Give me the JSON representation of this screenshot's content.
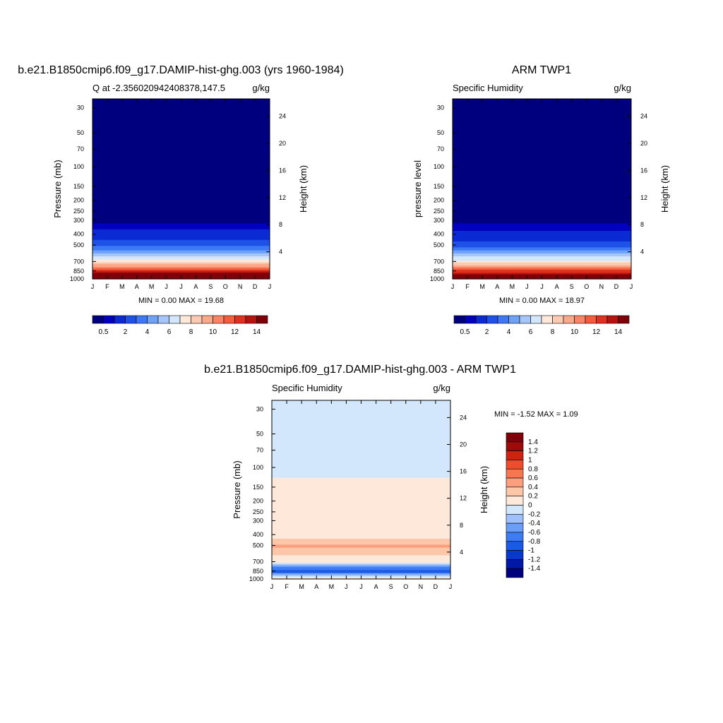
{
  "chart_data": [
    {
      "type": "heatmap",
      "title": "b.e21.B1850cmip6.f09_g17.DAMIP-hist-ghg.003 (yrs 1960-1984)",
      "subtitle_left": "Q at -2.356020942408378,147.5",
      "subtitle_right": "g/kg",
      "ylabel": "Pressure (mb)",
      "ylabel_right": "Height (km)",
      "x_ticks": [
        "J",
        "F",
        "M",
        "A",
        "M",
        "J",
        "J",
        "A",
        "S",
        "O",
        "N",
        "D",
        "J"
      ],
      "y_ticks": [
        "30",
        "50",
        "70",
        "100",
        "150",
        "200",
        "250",
        "300",
        "400",
        "500",
        "700",
        "850",
        "1000"
      ],
      "y_ticks_right": [
        "24",
        "20",
        "16",
        "12",
        "8",
        "4"
      ],
      "stats": "MIN =   0.00 MAX =  19.68",
      "colorbar_labels": [
        "0.5",
        "2",
        "4",
        "6",
        "8",
        "10",
        "12",
        "14"
      ],
      "levels": [
        0.5,
        1,
        2,
        3,
        4,
        5,
        6,
        7,
        8,
        9,
        10,
        11,
        12,
        13,
        14
      ],
      "pressure_levels": [
        30,
        50,
        70,
        100,
        150,
        200,
        250,
        300,
        400,
        500,
        700,
        850,
        1000
      ],
      "values_by_pressure": [
        0.0,
        0.0,
        0.0,
        0.0,
        0.0,
        0.0,
        0.1,
        0.3,
        1.3,
        2.6,
        7.5,
        12.5,
        17.5
      ]
    },
    {
      "type": "heatmap",
      "title": "ARM TWP1",
      "subtitle_left": "Specific Humidity",
      "subtitle_right": "g/kg",
      "ylabel": "pressure level",
      "ylabel_right": "Height (km)",
      "x_ticks": [
        "J",
        "F",
        "M",
        "A",
        "M",
        "J",
        "J",
        "A",
        "S",
        "O",
        "N",
        "D",
        "J"
      ],
      "y_ticks": [
        "30",
        "50",
        "70",
        "100",
        "150",
        "200",
        "250",
        "300",
        "400",
        "500",
        "700",
        "850",
        "1000"
      ],
      "y_ticks_right": [
        "24",
        "20",
        "16",
        "12",
        "8",
        "4"
      ],
      "stats": "MIN =   0.00 MAX =  18.97",
      "colorbar_labels": [
        "0.5",
        "2",
        "4",
        "6",
        "8",
        "10",
        "12",
        "14"
      ],
      "levels": [
        0.5,
        1,
        2,
        3,
        4,
        5,
        6,
        7,
        8,
        9,
        10,
        11,
        12,
        13,
        14
      ],
      "pressure_levels": [
        30,
        50,
        70,
        100,
        150,
        200,
        250,
        300,
        400,
        500,
        700,
        850,
        1000
      ],
      "values_by_pressure": [
        0.0,
        0.0,
        0.0,
        0.0,
        0.0,
        0.0,
        0.1,
        0.3,
        1.2,
        2.5,
        7.3,
        12.2,
        17.0
      ]
    },
    {
      "type": "heatmap",
      "title": "b.e21.B1850cmip6.f09_g17.DAMIP-hist-ghg.003 - ARM TWP1",
      "subtitle_left": "Specific Humidity",
      "subtitle_right": "g/kg",
      "ylabel": "Pressure (mb)",
      "ylabel_right": "Height (km)",
      "x_ticks": [
        "J",
        "F",
        "M",
        "A",
        "M",
        "J",
        "J",
        "A",
        "S",
        "O",
        "N",
        "D",
        "J"
      ],
      "y_ticks": [
        "30",
        "50",
        "70",
        "100",
        "150",
        "200",
        "250",
        "300",
        "400",
        "500",
        "700",
        "850",
        "1000"
      ],
      "y_ticks_right": [
        "24",
        "20",
        "16",
        "12",
        "8",
        "4"
      ],
      "stats": "MIN =  -1.52 MAX =   1.09",
      "colorbar_labels": [
        "1.4",
        "1.2",
        "1",
        "0.8",
        "0.6",
        "0.4",
        "0.2",
        "0",
        "-0.2",
        "-0.4",
        "-0.6",
        "-0.8",
        "-1",
        "-1.2",
        "-1.4"
      ],
      "levels": [
        -1.4,
        -1.2,
        -1.0,
        -0.8,
        -0.6,
        -0.4,
        -0.2,
        0,
        0.2,
        0.4,
        0.6,
        0.8,
        1.0,
        1.2,
        1.4
      ],
      "pressure_levels": [
        30,
        50,
        70,
        100,
        150,
        200,
        250,
        300,
        400,
        500,
        700,
        850,
        1000
      ],
      "values_by_pressure": [
        -0.05,
        -0.05,
        -0.05,
        -0.05,
        0.05,
        0.05,
        0.05,
        0.05,
        0.05,
        0.45,
        0.05,
        -1.0,
        0.25
      ]
    }
  ],
  "palette": {
    "colors_16": [
      "#00007f",
      "#0000bf",
      "#0a2ad4",
      "#1e52e6",
      "#3c7af5",
      "#6ea2fa",
      "#a5c6fb",
      "#d3e7fc",
      "#fde8d9",
      "#fccab2",
      "#fba889",
      "#f98463",
      "#f45c3a",
      "#e0301e",
      "#b8140f",
      "#80000a"
    ],
    "colors_diff": [
      "#00007f",
      "#0018a8",
      "#0838cc",
      "#1a5ae6",
      "#3c7cf4",
      "#6a9ef8",
      "#9fc0fa",
      "#d3e7fc",
      "#fde8d9",
      "#fcc6a8",
      "#fb9f7e",
      "#f87651",
      "#ef4c2a",
      "#cc2414",
      "#9c0a0a",
      "#80000a"
    ]
  }
}
